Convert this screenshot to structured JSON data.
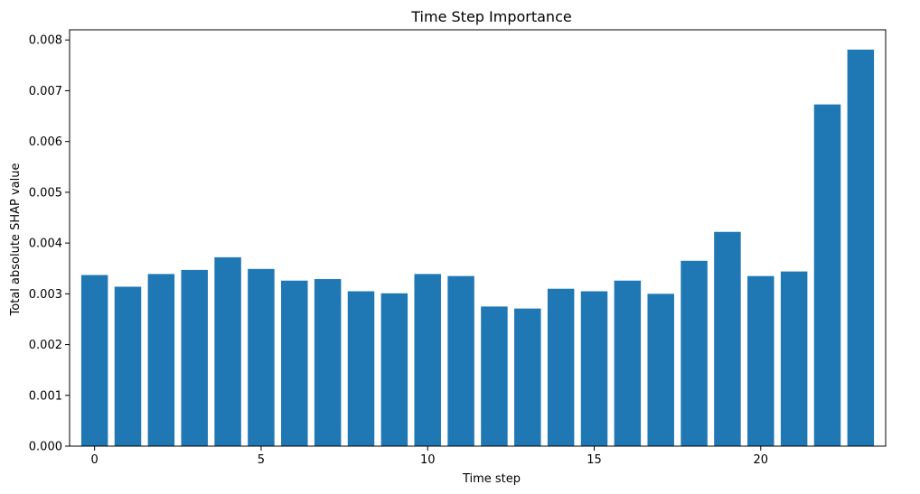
{
  "chart_data": {
    "type": "bar",
    "title": "Time Step Importance",
    "xlabel": "Time step",
    "ylabel": "Total absolute SHAP value",
    "x": [
      0,
      1,
      2,
      3,
      4,
      5,
      6,
      7,
      8,
      9,
      10,
      11,
      12,
      13,
      14,
      15,
      16,
      17,
      18,
      19,
      20,
      21,
      22,
      23
    ],
    "values": [
      0.00337,
      0.00314,
      0.00339,
      0.00347,
      0.00372,
      0.00349,
      0.00326,
      0.00329,
      0.00305,
      0.00301,
      0.00339,
      0.00335,
      0.00275,
      0.00271,
      0.0031,
      0.00305,
      0.00326,
      0.003,
      0.00365,
      0.00422,
      0.00335,
      0.00344,
      0.00673,
      0.00781
    ],
    "xlim": [
      -0.75,
      23.75
    ],
    "ylim": [
      0,
      0.0082
    ],
    "xticks": [
      0,
      5,
      10,
      15,
      20
    ],
    "xtick_labels": [
      "0",
      "5",
      "10",
      "15",
      "20"
    ],
    "yticks": [
      0,
      0.001,
      0.002,
      0.003,
      0.004,
      0.005,
      0.006,
      0.007,
      0.008
    ],
    "ytick_labels": [
      "0.000",
      "0.001",
      "0.002",
      "0.003",
      "0.004",
      "0.005",
      "0.006",
      "0.007",
      "0.008"
    ],
    "bar_color": "#1f77b4",
    "grid": false,
    "legend": "none"
  }
}
